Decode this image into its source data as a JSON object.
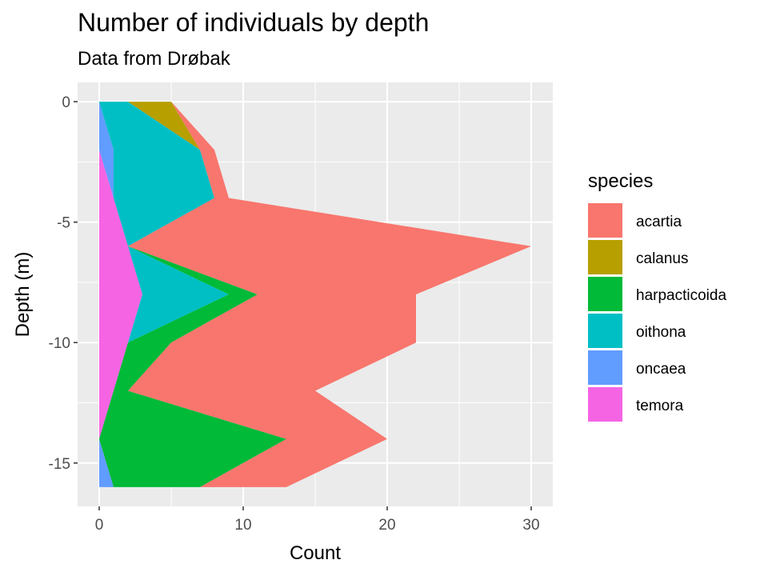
{
  "chart_data": {
    "type": "area",
    "orientation": "horizontal-stacked",
    "title": "Number of individuals by depth",
    "subtitle": "Data from Drøbak",
    "xlabel": "Count",
    "ylabel": "Depth (m)",
    "xlim": [
      -1.5,
      31.5
    ],
    "ylim": [
      -16.8,
      0.8
    ],
    "x_ticks": [
      0,
      10,
      20,
      30
    ],
    "y_ticks": [
      0,
      -5,
      -10,
      -15
    ],
    "x_tick_labels": [
      "0",
      "10",
      "20",
      "30"
    ],
    "y_tick_labels": [
      "0",
      "-5",
      "-10",
      "-15"
    ],
    "grid": true,
    "legend": {
      "title": "species",
      "position": "right"
    },
    "depths": [
      0,
      -2,
      -4,
      -6,
      -8,
      -10,
      -12,
      -14,
      -16
    ],
    "series": [
      {
        "name": "temora",
        "color": "#F564E3",
        "values": [
          0,
          0,
          1,
          2,
          3,
          2,
          1,
          0,
          0
        ]
      },
      {
        "name": "oncaea",
        "color": "#619CFF",
        "values": [
          0,
          1,
          0,
          0,
          0,
          0,
          0,
          0,
          1
        ]
      },
      {
        "name": "oithona",
        "color": "#00BFC4",
        "values": [
          2,
          6,
          7,
          0,
          6,
          0,
          0,
          0,
          0
        ]
      },
      {
        "name": "harpacticoida",
        "color": "#00BA38",
        "values": [
          0,
          0,
          0,
          0,
          2,
          3,
          1,
          13,
          6
        ]
      },
      {
        "name": "calanus",
        "color": "#B79F00",
        "values": [
          3,
          0,
          0,
          0,
          0,
          0,
          0,
          0,
          0
        ]
      },
      {
        "name": "acartia",
        "color": "#F8766D",
        "values": [
          0,
          1,
          1,
          28,
          11,
          17,
          13,
          7,
          6
        ]
      }
    ]
  }
}
